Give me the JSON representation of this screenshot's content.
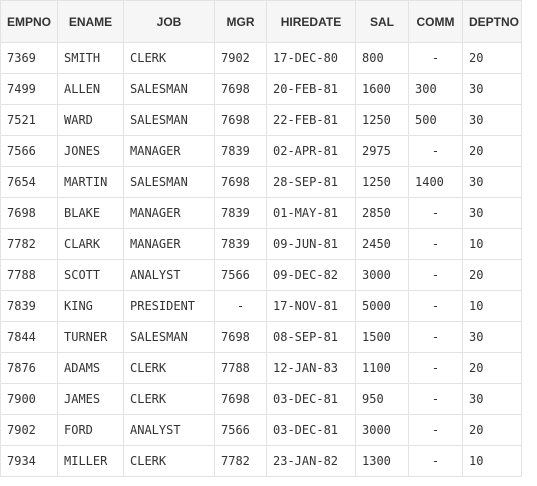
{
  "table": {
    "headers": [
      "EMPNO",
      "ENAME",
      "JOB",
      "MGR",
      "HIREDATE",
      "SAL",
      "COMM",
      "DEPTNO"
    ],
    "rows": [
      [
        "7369",
        "SMITH",
        "CLERK",
        "7902",
        "17-DEC-80",
        "800",
        "-",
        "20"
      ],
      [
        "7499",
        "ALLEN",
        "SALESMAN",
        "7698",
        "20-FEB-81",
        "1600",
        "300",
        "30"
      ],
      [
        "7521",
        "WARD",
        "SALESMAN",
        "7698",
        "22-FEB-81",
        "1250",
        "500",
        "30"
      ],
      [
        "7566",
        "JONES",
        "MANAGER",
        "7839",
        "02-APR-81",
        "2975",
        "-",
        "20"
      ],
      [
        "7654",
        "MARTIN",
        "SALESMAN",
        "7698",
        "28-SEP-81",
        "1250",
        "1400",
        "30"
      ],
      [
        "7698",
        "BLAKE",
        "MANAGER",
        "7839",
        "01-MAY-81",
        "2850",
        "-",
        "30"
      ],
      [
        "7782",
        "CLARK",
        "MANAGER",
        "7839",
        "09-JUN-81",
        "2450",
        "-",
        "10"
      ],
      [
        "7788",
        "SCOTT",
        "ANALYST",
        "7566",
        "09-DEC-82",
        "3000",
        "-",
        "20"
      ],
      [
        "7839",
        "KING",
        "PRESIDENT",
        "-",
        "17-NOV-81",
        "5000",
        "-",
        "10"
      ],
      [
        "7844",
        "TURNER",
        "SALESMAN",
        "7698",
        "08-SEP-81",
        "1500",
        "-",
        "30"
      ],
      [
        "7876",
        "ADAMS",
        "CLERK",
        "7788",
        "12-JAN-83",
        "1100",
        "-",
        "20"
      ],
      [
        "7900",
        "JAMES",
        "CLERK",
        "7698",
        "03-DEC-81",
        "950",
        "-",
        "30"
      ],
      [
        "7902",
        "FORD",
        "ANALYST",
        "7566",
        "03-DEC-81",
        "3000",
        "-",
        "20"
      ],
      [
        "7934",
        "MILLER",
        "CLERK",
        "7782",
        "23-JAN-82",
        "1300",
        "-",
        "10"
      ]
    ]
  }
}
